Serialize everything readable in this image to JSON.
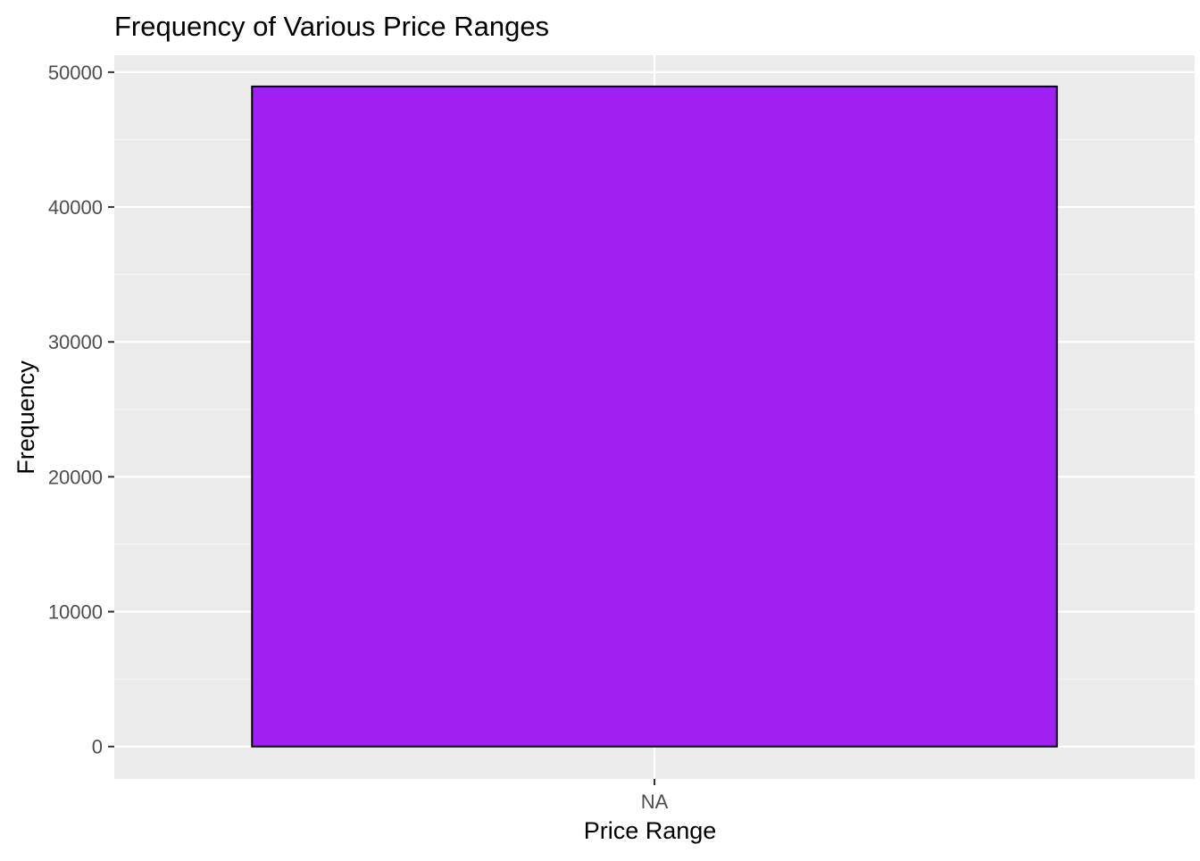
{
  "chart_data": {
    "type": "bar",
    "title": "Frequency of Various Price Ranges",
    "xlabel": "Price Range",
    "ylabel": "Frequency",
    "categories": [
      "NA"
    ],
    "values": [
      48940
    ],
    "ylim": [
      -2400,
      51250
    ],
    "yticks": [
      0,
      10000,
      20000,
      30000,
      40000,
      50000
    ],
    "ytick_labels": [
      "0",
      "10000",
      "20000",
      "30000",
      "40000",
      "50000"
    ],
    "minor_yticks": [
      5000,
      15000,
      25000,
      35000,
      45000
    ],
    "grid": true,
    "legend": "none",
    "colors": {
      "bar_fill": "#A020F0",
      "bar_outline": "#000000",
      "panel_background": "#EBEBEB",
      "grid_major": "#FFFFFF",
      "grid_minor": "#F5F5F5",
      "tick_text": "#4D4D4D",
      "axis_title": "#000000",
      "tick_mark": "#333333"
    }
  }
}
